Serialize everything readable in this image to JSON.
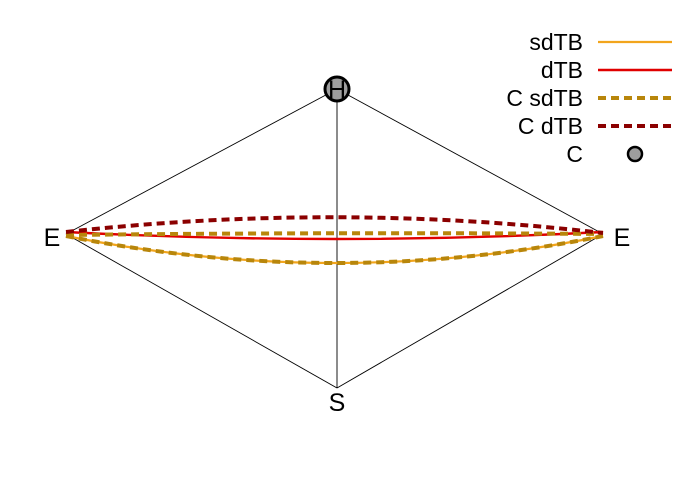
{
  "vertices": {
    "top": "H",
    "left": "E",
    "right": "E",
    "bottom": "S"
  },
  "legend": [
    {
      "label": "sdTB",
      "color": "#f2a51c",
      "style": "solid"
    },
    {
      "label": "dTB",
      "color": "#e00000",
      "style": "solid"
    },
    {
      "label": "C sdTB",
      "color": "#b8860b",
      "style": "dashed"
    },
    {
      "label": "C dTB",
      "color": "#8b0000",
      "style": "dashed"
    },
    {
      "label": "C",
      "color": "#9e9e9e",
      "style": "point"
    }
  ]
}
